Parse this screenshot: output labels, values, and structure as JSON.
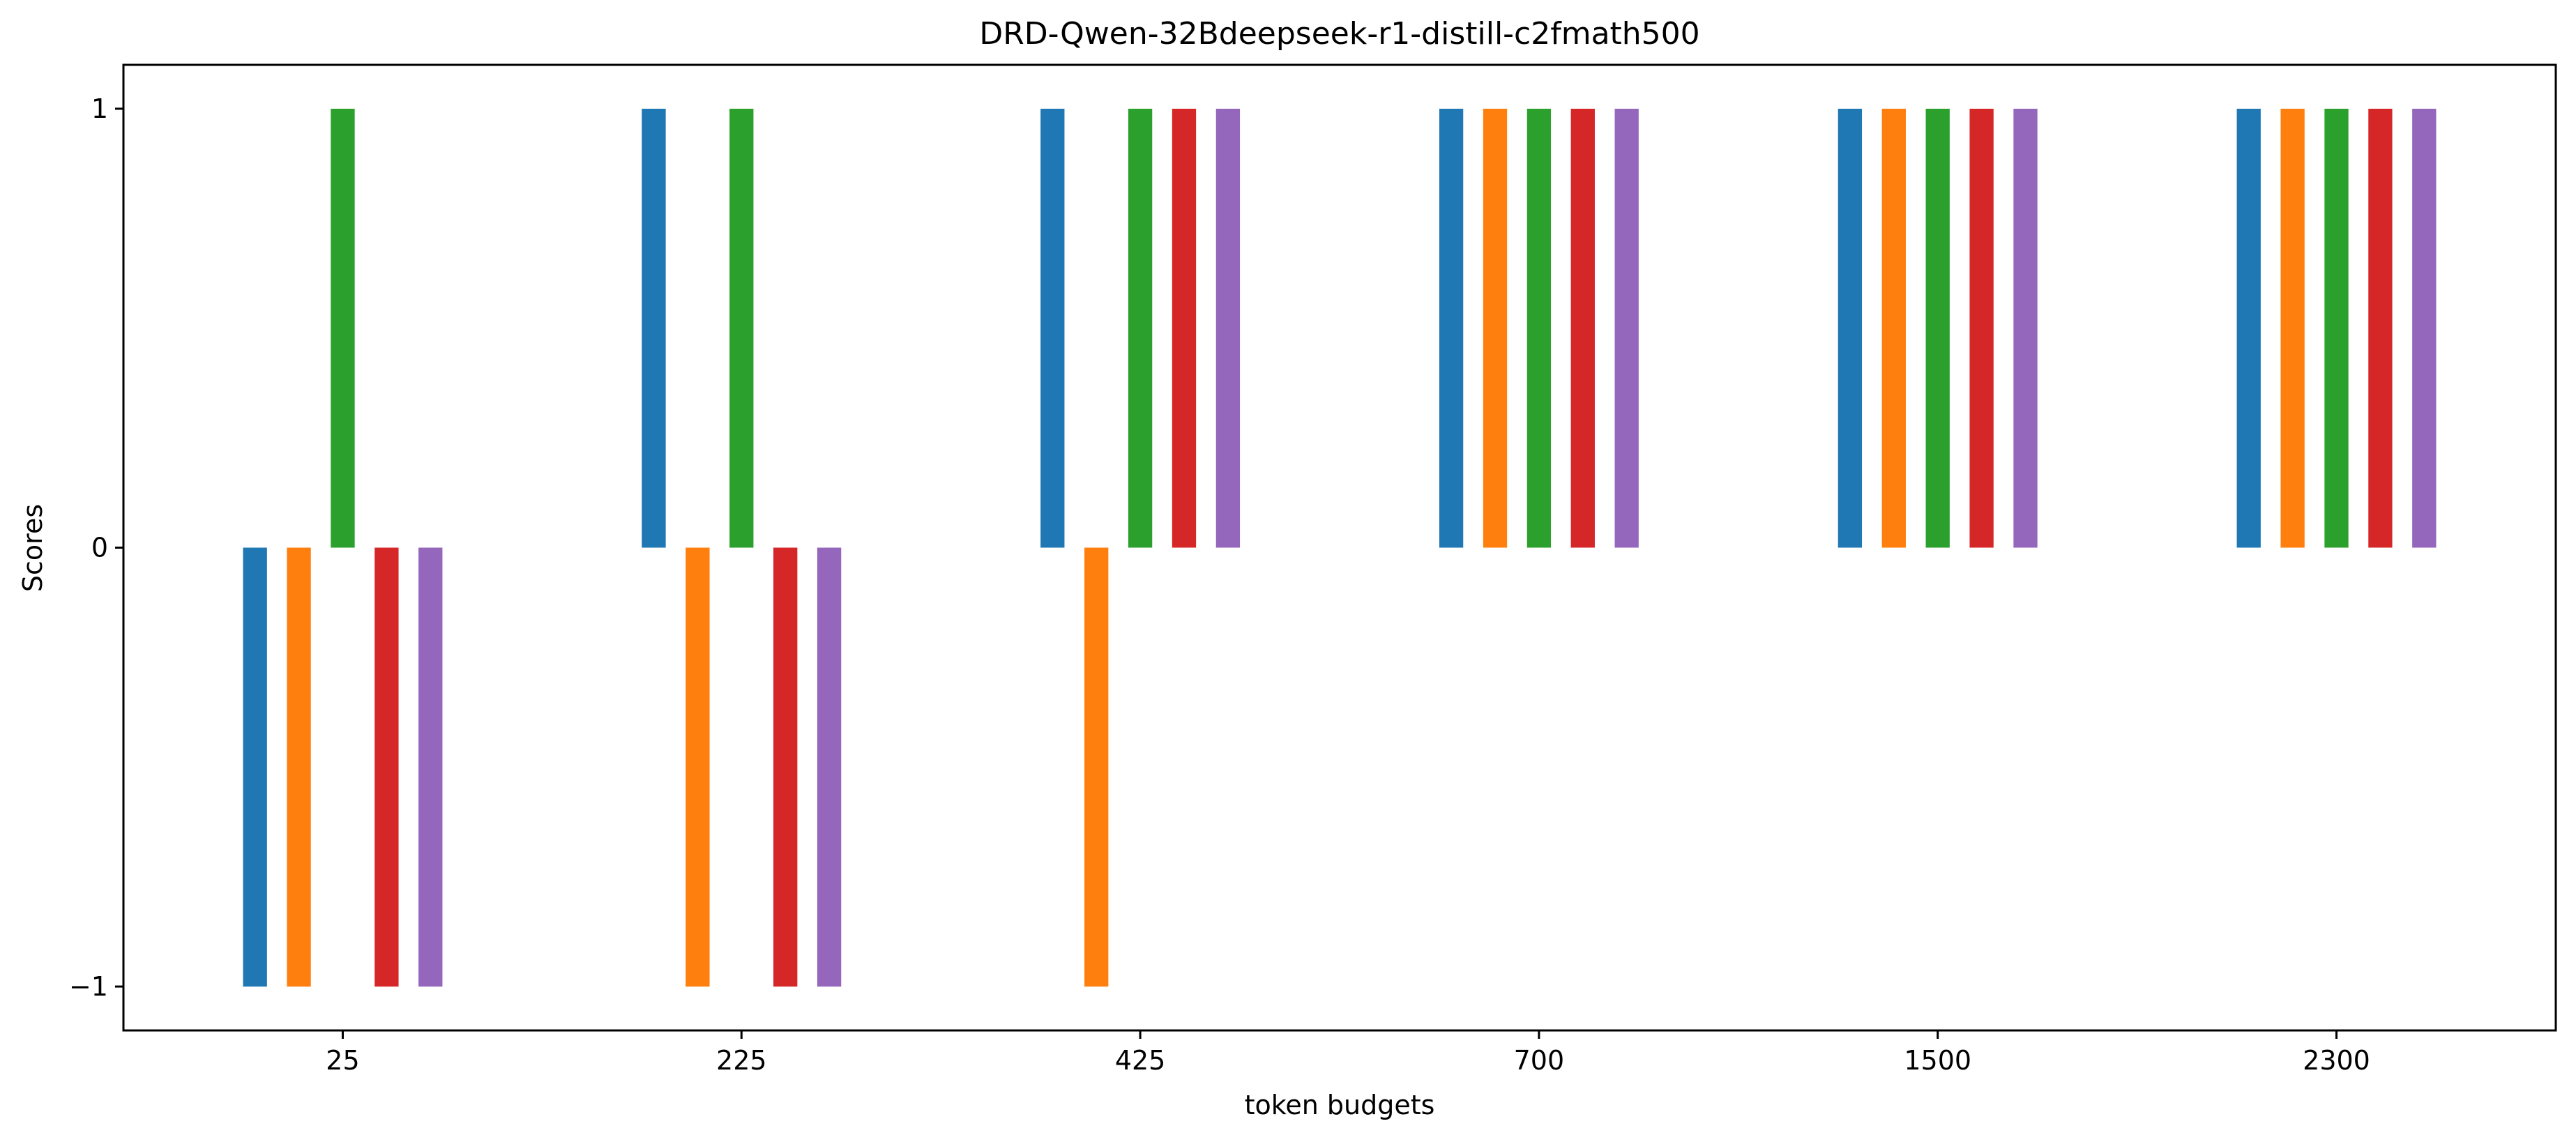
{
  "chart_data": {
    "type": "bar",
    "title": "DRD-Qwen-32Bdeepseek-r1-distill-c2fmath500",
    "xlabel": "token budgets",
    "ylabel": "Scores",
    "categories": [
      "25",
      "225",
      "425",
      "700",
      "1500",
      "2300"
    ],
    "ylim": [
      -1.1,
      1.1
    ],
    "yticks": [
      -1,
      0,
      1
    ],
    "ytick_labels": [
      "−1",
      "0",
      "1"
    ],
    "grid": false,
    "legend": "none",
    "series": [
      {
        "color": "#1f77b4",
        "values": [
          -1,
          1,
          1,
          1,
          1,
          1
        ]
      },
      {
        "color": "#ff7f0e",
        "values": [
          -1,
          -1,
          -1,
          1,
          1,
          1
        ]
      },
      {
        "color": "#2ca02c",
        "values": [
          1,
          1,
          1,
          1,
          1,
          1
        ]
      },
      {
        "color": "#d62728",
        "values": [
          -1,
          -1,
          1,
          1,
          1,
          1
        ]
      },
      {
        "color": "#9467bd",
        "values": [
          -1,
          -1,
          1,
          1,
          1,
          1
        ]
      }
    ]
  }
}
